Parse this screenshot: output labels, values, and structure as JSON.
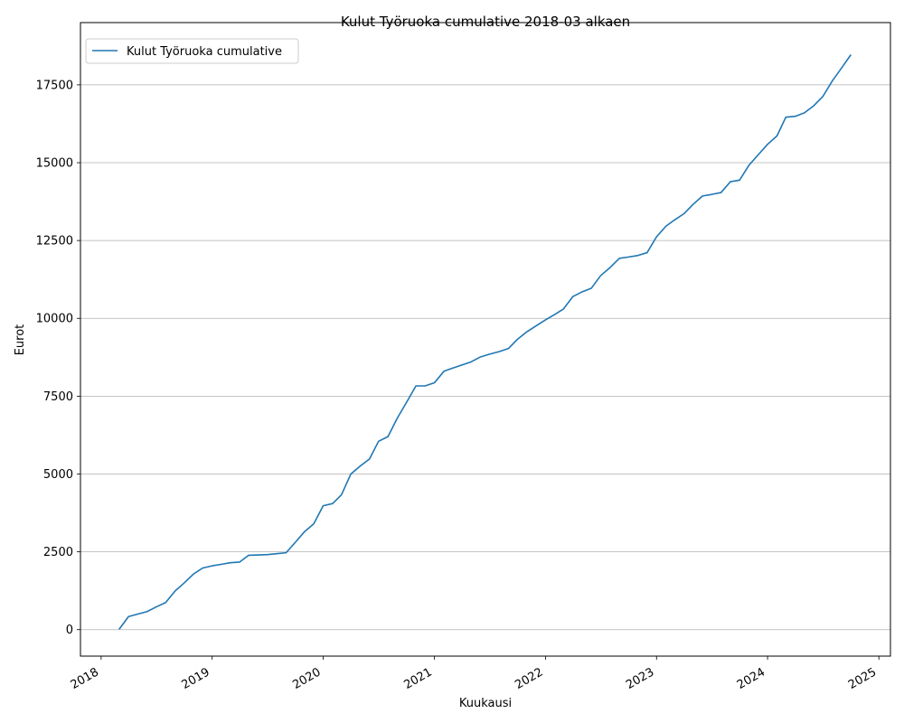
{
  "chart_data": {
    "type": "line",
    "title": "Kulut Työruoka cumulative 2018-03 alkaen",
    "xlabel": "Kuukausi",
    "ylabel": "Eurot",
    "xlim": [
      "2017-10-25",
      "2025-02-08"
    ],
    "ylim": [
      -850,
      19500
    ],
    "x_ticks": [
      "2018",
      "2019",
      "2020",
      "2021",
      "2022",
      "2023",
      "2024",
      "2025"
    ],
    "y_ticks": [
      0,
      2500,
      5000,
      7500,
      10000,
      12500,
      15000,
      17500
    ],
    "grid": "horizontal",
    "legend_position": "top-left",
    "series": [
      {
        "name": "Kulut Työruoka cumulative",
        "color": "#1f77b4",
        "x": [
          "2018-03",
          "2018-04",
          "2018-05",
          "2018-06",
          "2018-07",
          "2018-08",
          "2018-09",
          "2018-10",
          "2018-11",
          "2018-12",
          "2019-01",
          "2019-02",
          "2019-03",
          "2019-04",
          "2019-05",
          "2019-06",
          "2019-07",
          "2019-08",
          "2019-09",
          "2019-10",
          "2019-11",
          "2019-12",
          "2020-01",
          "2020-02",
          "2020-03",
          "2020-04",
          "2020-05",
          "2020-06",
          "2020-07",
          "2020-08",
          "2020-09",
          "2020-10",
          "2020-11",
          "2020-12",
          "2021-01",
          "2021-02",
          "2021-03",
          "2021-04",
          "2021-05",
          "2021-06",
          "2021-07",
          "2021-08",
          "2021-09",
          "2021-10",
          "2021-11",
          "2021-12",
          "2022-01",
          "2022-02",
          "2022-03",
          "2022-04",
          "2022-05",
          "2022-06",
          "2022-07",
          "2022-08",
          "2022-09",
          "2022-10",
          "2022-11",
          "2022-12",
          "2023-01",
          "2023-02",
          "2023-03",
          "2023-04",
          "2023-05",
          "2023-06",
          "2023-07",
          "2023-08",
          "2023-09",
          "2023-10",
          "2023-11",
          "2023-12",
          "2024-01",
          "2024-02",
          "2024-03",
          "2024-04",
          "2024-05",
          "2024-06",
          "2024-07",
          "2024-08",
          "2024-09",
          "2024-10"
        ],
        "values": [
          10,
          420,
          500,
          580,
          730,
          870,
          1240,
          1500,
          1790,
          1980,
          2050,
          2100,
          2150,
          2170,
          2390,
          2400,
          2410,
          2440,
          2470,
          2800,
          3150,
          3400,
          3980,
          4050,
          4330,
          5000,
          5250,
          5480,
          6050,
          6200,
          6800,
          7300,
          7830,
          7830,
          7930,
          8300,
          8400,
          8500,
          8600,
          8760,
          8850,
          8930,
          9030,
          9330,
          9570,
          9760,
          9950,
          10130,
          10300,
          10700,
          10850,
          10970,
          11370,
          11630,
          11930,
          11970,
          12020,
          12110,
          12620,
          12960,
          13160,
          13360,
          13660,
          13930,
          13980,
          14040,
          14390,
          14440,
          14920,
          15250,
          15590,
          15860,
          16460,
          16490,
          16600,
          16830,
          17130,
          17630,
          18050,
          18470
        ]
      }
    ]
  }
}
